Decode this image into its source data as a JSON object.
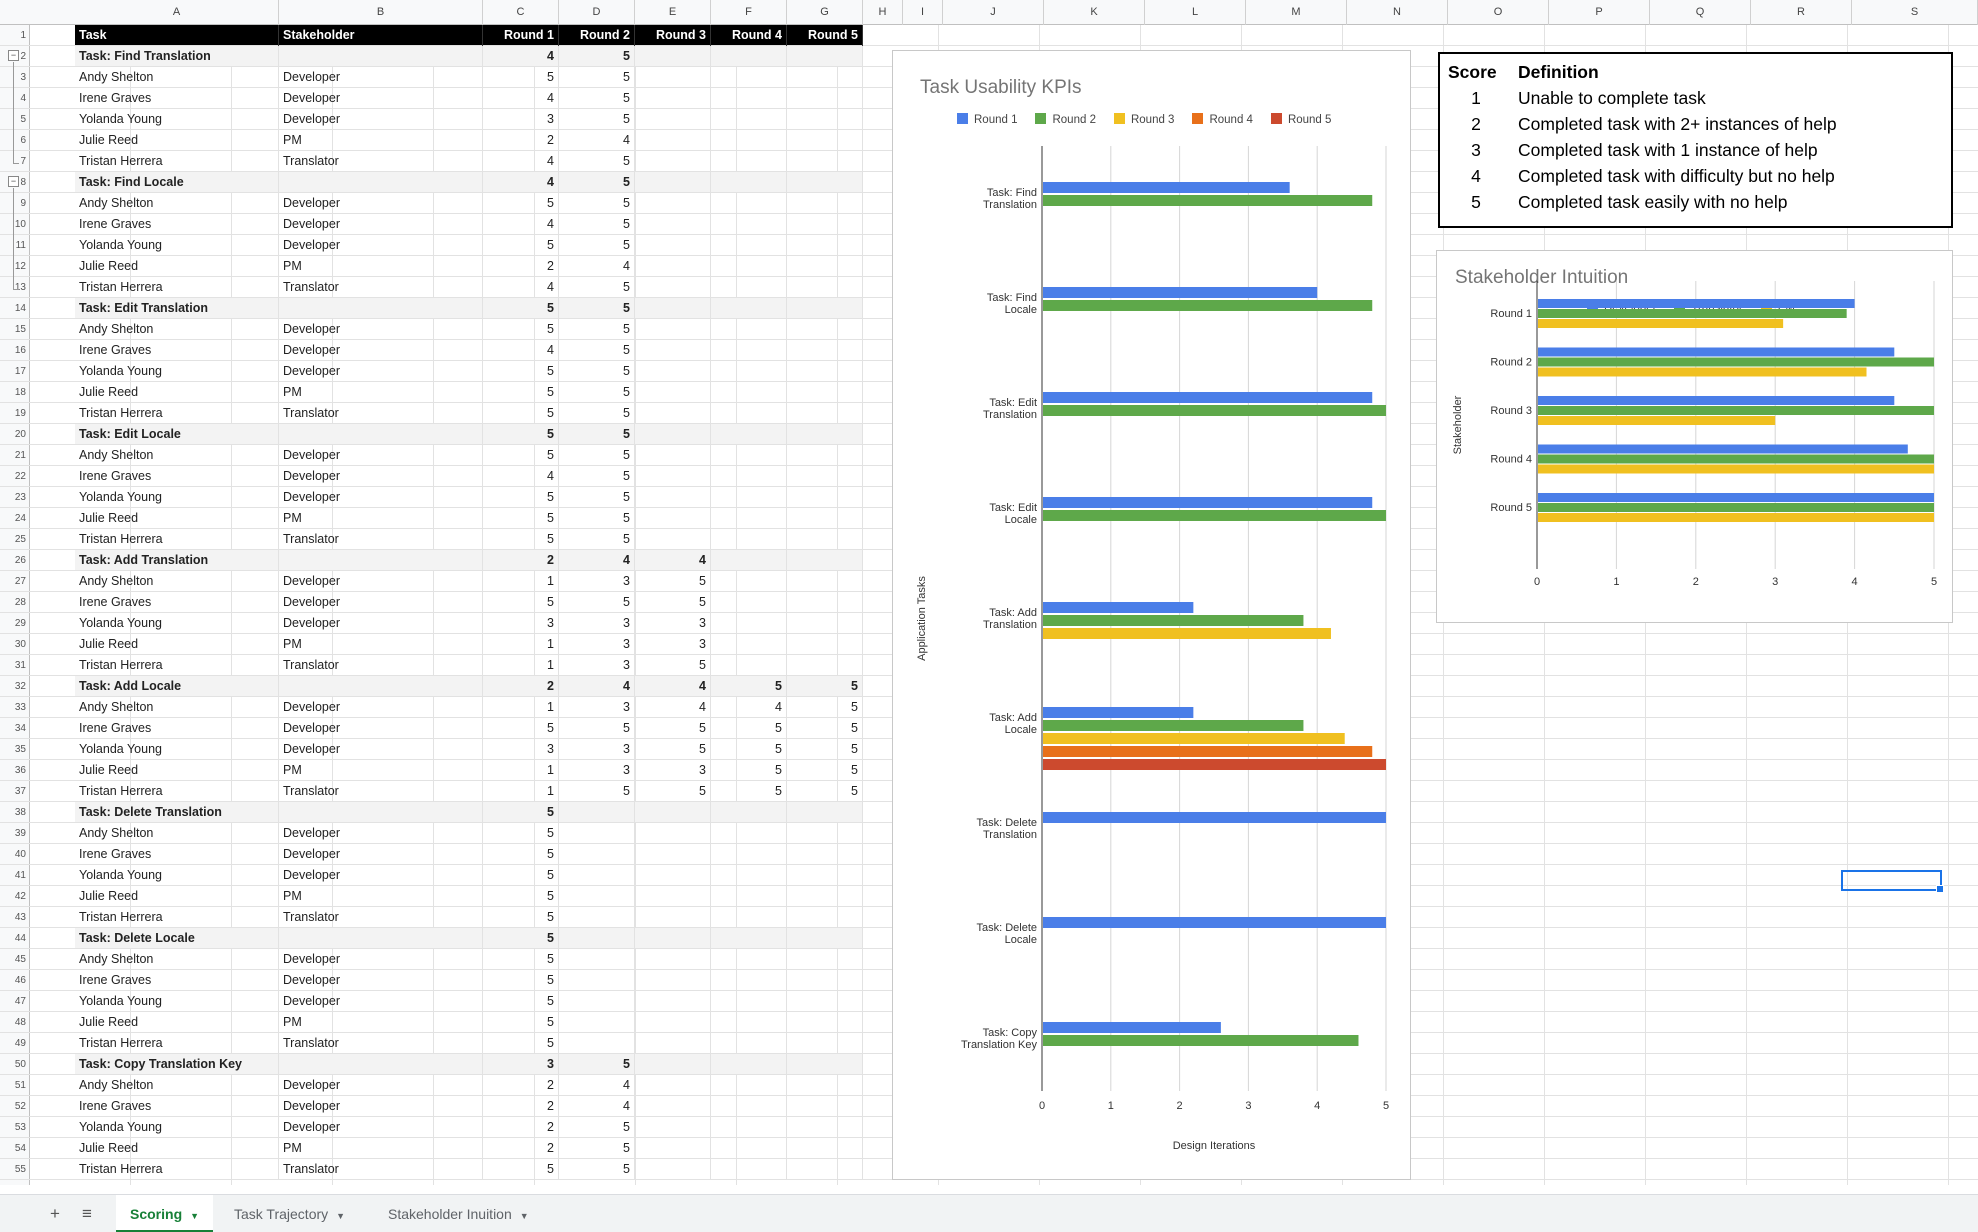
{
  "columns": [
    "A",
    "B",
    "C",
    "D",
    "E",
    "F",
    "G",
    "H",
    "I",
    "J",
    "K",
    "L",
    "M",
    "N",
    "O",
    "P",
    "Q",
    "R",
    "S"
  ],
  "table": {
    "header": [
      "Task",
      "Stakeholder",
      "Round 1",
      "Round 2",
      "Round 3",
      "Round 4",
      "Round 5"
    ],
    "rows": [
      [
        "Task: Find Translation",
        "",
        "4",
        "5",
        "",
        "",
        ""
      ],
      [
        "Andy Shelton",
        "Developer",
        "5",
        "5",
        "",
        "",
        ""
      ],
      [
        "Irene Graves",
        "Developer",
        "4",
        "5",
        "",
        "",
        ""
      ],
      [
        "Yolanda Young",
        "Developer",
        "3",
        "5",
        "",
        "",
        ""
      ],
      [
        "Julie Reed",
        "PM",
        "2",
        "4",
        "",
        "",
        ""
      ],
      [
        "Tristan Herrera",
        "Translator",
        "4",
        "5",
        "",
        "",
        ""
      ],
      [
        "Task: Find Locale",
        "",
        "4",
        "5",
        "",
        "",
        ""
      ],
      [
        "Andy Shelton",
        "Developer",
        "5",
        "5",
        "",
        "",
        ""
      ],
      [
        "Irene Graves",
        "Developer",
        "4",
        "5",
        "",
        "",
        ""
      ],
      [
        "Yolanda Young",
        "Developer",
        "5",
        "5",
        "",
        "",
        ""
      ],
      [
        "Julie Reed",
        "PM",
        "2",
        "4",
        "",
        "",
        ""
      ],
      [
        "Tristan Herrera",
        "Translator",
        "4",
        "5",
        "",
        "",
        ""
      ],
      [
        "Task: Edit Translation",
        "",
        "5",
        "5",
        "",
        "",
        ""
      ],
      [
        "Andy Shelton",
        "Developer",
        "5",
        "5",
        "",
        "",
        ""
      ],
      [
        "Irene Graves",
        "Developer",
        "4",
        "5",
        "",
        "",
        ""
      ],
      [
        "Yolanda Young",
        "Developer",
        "5",
        "5",
        "",
        "",
        ""
      ],
      [
        "Julie Reed",
        "PM",
        "5",
        "5",
        "",
        "",
        ""
      ],
      [
        "Tristan Herrera",
        "Translator",
        "5",
        "5",
        "",
        "",
        ""
      ],
      [
        "Task: Edit Locale",
        "",
        "5",
        "5",
        "",
        "",
        ""
      ],
      [
        "Andy Shelton",
        "Developer",
        "5",
        "5",
        "",
        "",
        ""
      ],
      [
        "Irene Graves",
        "Developer",
        "4",
        "5",
        "",
        "",
        ""
      ],
      [
        "Yolanda Young",
        "Developer",
        "5",
        "5",
        "",
        "",
        ""
      ],
      [
        "Julie Reed",
        "PM",
        "5",
        "5",
        "",
        "",
        ""
      ],
      [
        "Tristan Herrera",
        "Translator",
        "5",
        "5",
        "",
        "",
        ""
      ],
      [
        "Task: Add Translation",
        "",
        "2",
        "4",
        "4",
        "",
        ""
      ],
      [
        "Andy Shelton",
        "Developer",
        "1",
        "3",
        "5",
        "",
        ""
      ],
      [
        "Irene Graves",
        "Developer",
        "5",
        "5",
        "5",
        "",
        ""
      ],
      [
        "Yolanda Young",
        "Developer",
        "3",
        "3",
        "3",
        "",
        ""
      ],
      [
        "Julie Reed",
        "PM",
        "1",
        "3",
        "3",
        "",
        ""
      ],
      [
        "Tristan Herrera",
        "Translator",
        "1",
        "3",
        "5",
        "",
        ""
      ],
      [
        "Task: Add Locale",
        "",
        "2",
        "4",
        "4",
        "5",
        "5"
      ],
      [
        "Andy Shelton",
        "Developer",
        "1",
        "3",
        "4",
        "4",
        "5"
      ],
      [
        "Irene Graves",
        "Developer",
        "5",
        "5",
        "5",
        "5",
        "5"
      ],
      [
        "Yolanda Young",
        "Developer",
        "3",
        "3",
        "5",
        "5",
        "5"
      ],
      [
        "Julie Reed",
        "PM",
        "1",
        "3",
        "3",
        "5",
        "5"
      ],
      [
        "Tristan Herrera",
        "Translator",
        "1",
        "5",
        "5",
        "5",
        "5"
      ],
      [
        "Task: Delete Translation",
        "",
        "5",
        "",
        "",
        "",
        ""
      ],
      [
        "Andy Shelton",
        "Developer",
        "5",
        "",
        "",
        "",
        ""
      ],
      [
        "Irene Graves",
        "Developer",
        "5",
        "",
        "",
        "",
        ""
      ],
      [
        "Yolanda Young",
        "Developer",
        "5",
        "",
        "",
        "",
        ""
      ],
      [
        "Julie Reed",
        "PM",
        "5",
        "",
        "",
        "",
        ""
      ],
      [
        "Tristan Herrera",
        "Translator",
        "5",
        "",
        "",
        "",
        ""
      ],
      [
        "Task: Delete Locale",
        "",
        "5",
        "",
        "",
        "",
        ""
      ],
      [
        "Andy Shelton",
        "Developer",
        "5",
        "",
        "",
        "",
        ""
      ],
      [
        "Irene Graves",
        "Developer",
        "5",
        "",
        "",
        "",
        ""
      ],
      [
        "Yolanda Young",
        "Developer",
        "5",
        "",
        "",
        "",
        ""
      ],
      [
        "Julie Reed",
        "PM",
        "5",
        "",
        "",
        "",
        ""
      ],
      [
        "Tristan Herrera",
        "Translator",
        "5",
        "",
        "",
        "",
        ""
      ],
      [
        "Task: Copy Translation Key",
        "",
        "3",
        "5",
        "",
        "",
        ""
      ],
      [
        "Andy Shelton",
        "Developer",
        "2",
        "4",
        "",
        "",
        ""
      ],
      [
        "Irene Graves",
        "Developer",
        "2",
        "4",
        "",
        "",
        ""
      ],
      [
        "Yolanda Young",
        "Developer",
        "2",
        "5",
        "",
        "",
        ""
      ],
      [
        "Julie Reed",
        "PM",
        "2",
        "5",
        "",
        "",
        ""
      ],
      [
        "Tristan Herrera",
        "Translator",
        "5",
        "5",
        "",
        "",
        ""
      ]
    ]
  },
  "definitions": {
    "header": {
      "score": "Score",
      "definition": "Definition"
    },
    "rows": [
      {
        "score": "1",
        "definition": "Unable to complete task"
      },
      {
        "score": "2",
        "definition": "Completed task with 2+ instances of help"
      },
      {
        "score": "3",
        "definition": "Completed task with 1 instance of help"
      },
      {
        "score": "4",
        "definition": "Completed task with difficulty but no help"
      },
      {
        "score": "5",
        "definition": "Completed task easily with no help"
      }
    ]
  },
  "chart_data": [
    {
      "type": "bar",
      "orientation": "horizontal",
      "title": "Task Usability  KPIs",
      "xlabel": "Design Iterations",
      "ylabel": "Application Tasks",
      "xlim": [
        0,
        5
      ],
      "xticks": [
        "0",
        "1",
        "2",
        "3",
        "4",
        "5"
      ],
      "legend": "top",
      "grid": true,
      "categories": [
        [
          "Task: Find",
          "Translation"
        ],
        [
          "Task: Find",
          "Locale"
        ],
        [
          "Task: Edit",
          "Translation"
        ],
        [
          "Task: Edit",
          "Locale"
        ],
        [
          "Task: Add",
          "Translation"
        ],
        [
          "Task: Add",
          "Locale"
        ],
        [
          "Task: Delete",
          "Translation"
        ],
        [
          "Task: Delete",
          "Locale"
        ],
        [
          "Task: Copy",
          "Translation Key"
        ]
      ],
      "series": [
        {
          "name": "Round 1",
          "color": "#4a7ee8",
          "values": [
            3.6,
            4.0,
            4.8,
            4.8,
            2.2,
            2.2,
            5,
            5,
            2.6
          ]
        },
        {
          "name": "Round 2",
          "color": "#5ea84a",
          "values": [
            4.8,
            4.8,
            5,
            5,
            3.8,
            3.8,
            null,
            null,
            4.6
          ]
        },
        {
          "name": "Round 3",
          "color": "#f0c020",
          "values": [
            null,
            null,
            null,
            null,
            4.2,
            4.4,
            null,
            null,
            null
          ]
        },
        {
          "name": "Round 4",
          "color": "#e8701a",
          "values": [
            null,
            null,
            null,
            null,
            null,
            4.8,
            null,
            null,
            null
          ]
        },
        {
          "name": "Round 5",
          "color": "#cc4a2e",
          "values": [
            null,
            null,
            null,
            null,
            null,
            5,
            null,
            null,
            null
          ]
        }
      ]
    },
    {
      "type": "bar",
      "orientation": "horizontal",
      "title": "Stakeholder Intuition",
      "xlabel": "",
      "ylabel": "Stakeholder",
      "xlim": [
        0,
        5
      ],
      "xticks": [
        "0",
        "1",
        "2",
        "3",
        "4",
        "5"
      ],
      "legend": "top",
      "grid": true,
      "categories": [
        [
          "Round 1"
        ],
        [
          "Round 2"
        ],
        [
          "Round 3"
        ],
        [
          "Round 4"
        ],
        [
          "Round 5"
        ]
      ],
      "series": [
        {
          "name": "Developer",
          "color": "#4a7ee8",
          "values": [
            4.0,
            4.5,
            4.5,
            4.67,
            5
          ]
        },
        {
          "name": "Translator",
          "color": "#5ea84a",
          "values": [
            3.9,
            5,
            5,
            5,
            5
          ]
        },
        {
          "name": "PM",
          "color": "#f0c020",
          "values": [
            3.1,
            4.15,
            3.0,
            5,
            5
          ]
        }
      ]
    }
  ],
  "tabs": [
    {
      "label": "Scoring",
      "active": true
    },
    {
      "label": "Task Trajectory",
      "active": false
    },
    {
      "label": "Stakeholder Inuition",
      "active": false
    }
  ],
  "tabbar": {
    "add_icon": "+",
    "list_icon": "≡",
    "dropdown_icon": "▼"
  }
}
